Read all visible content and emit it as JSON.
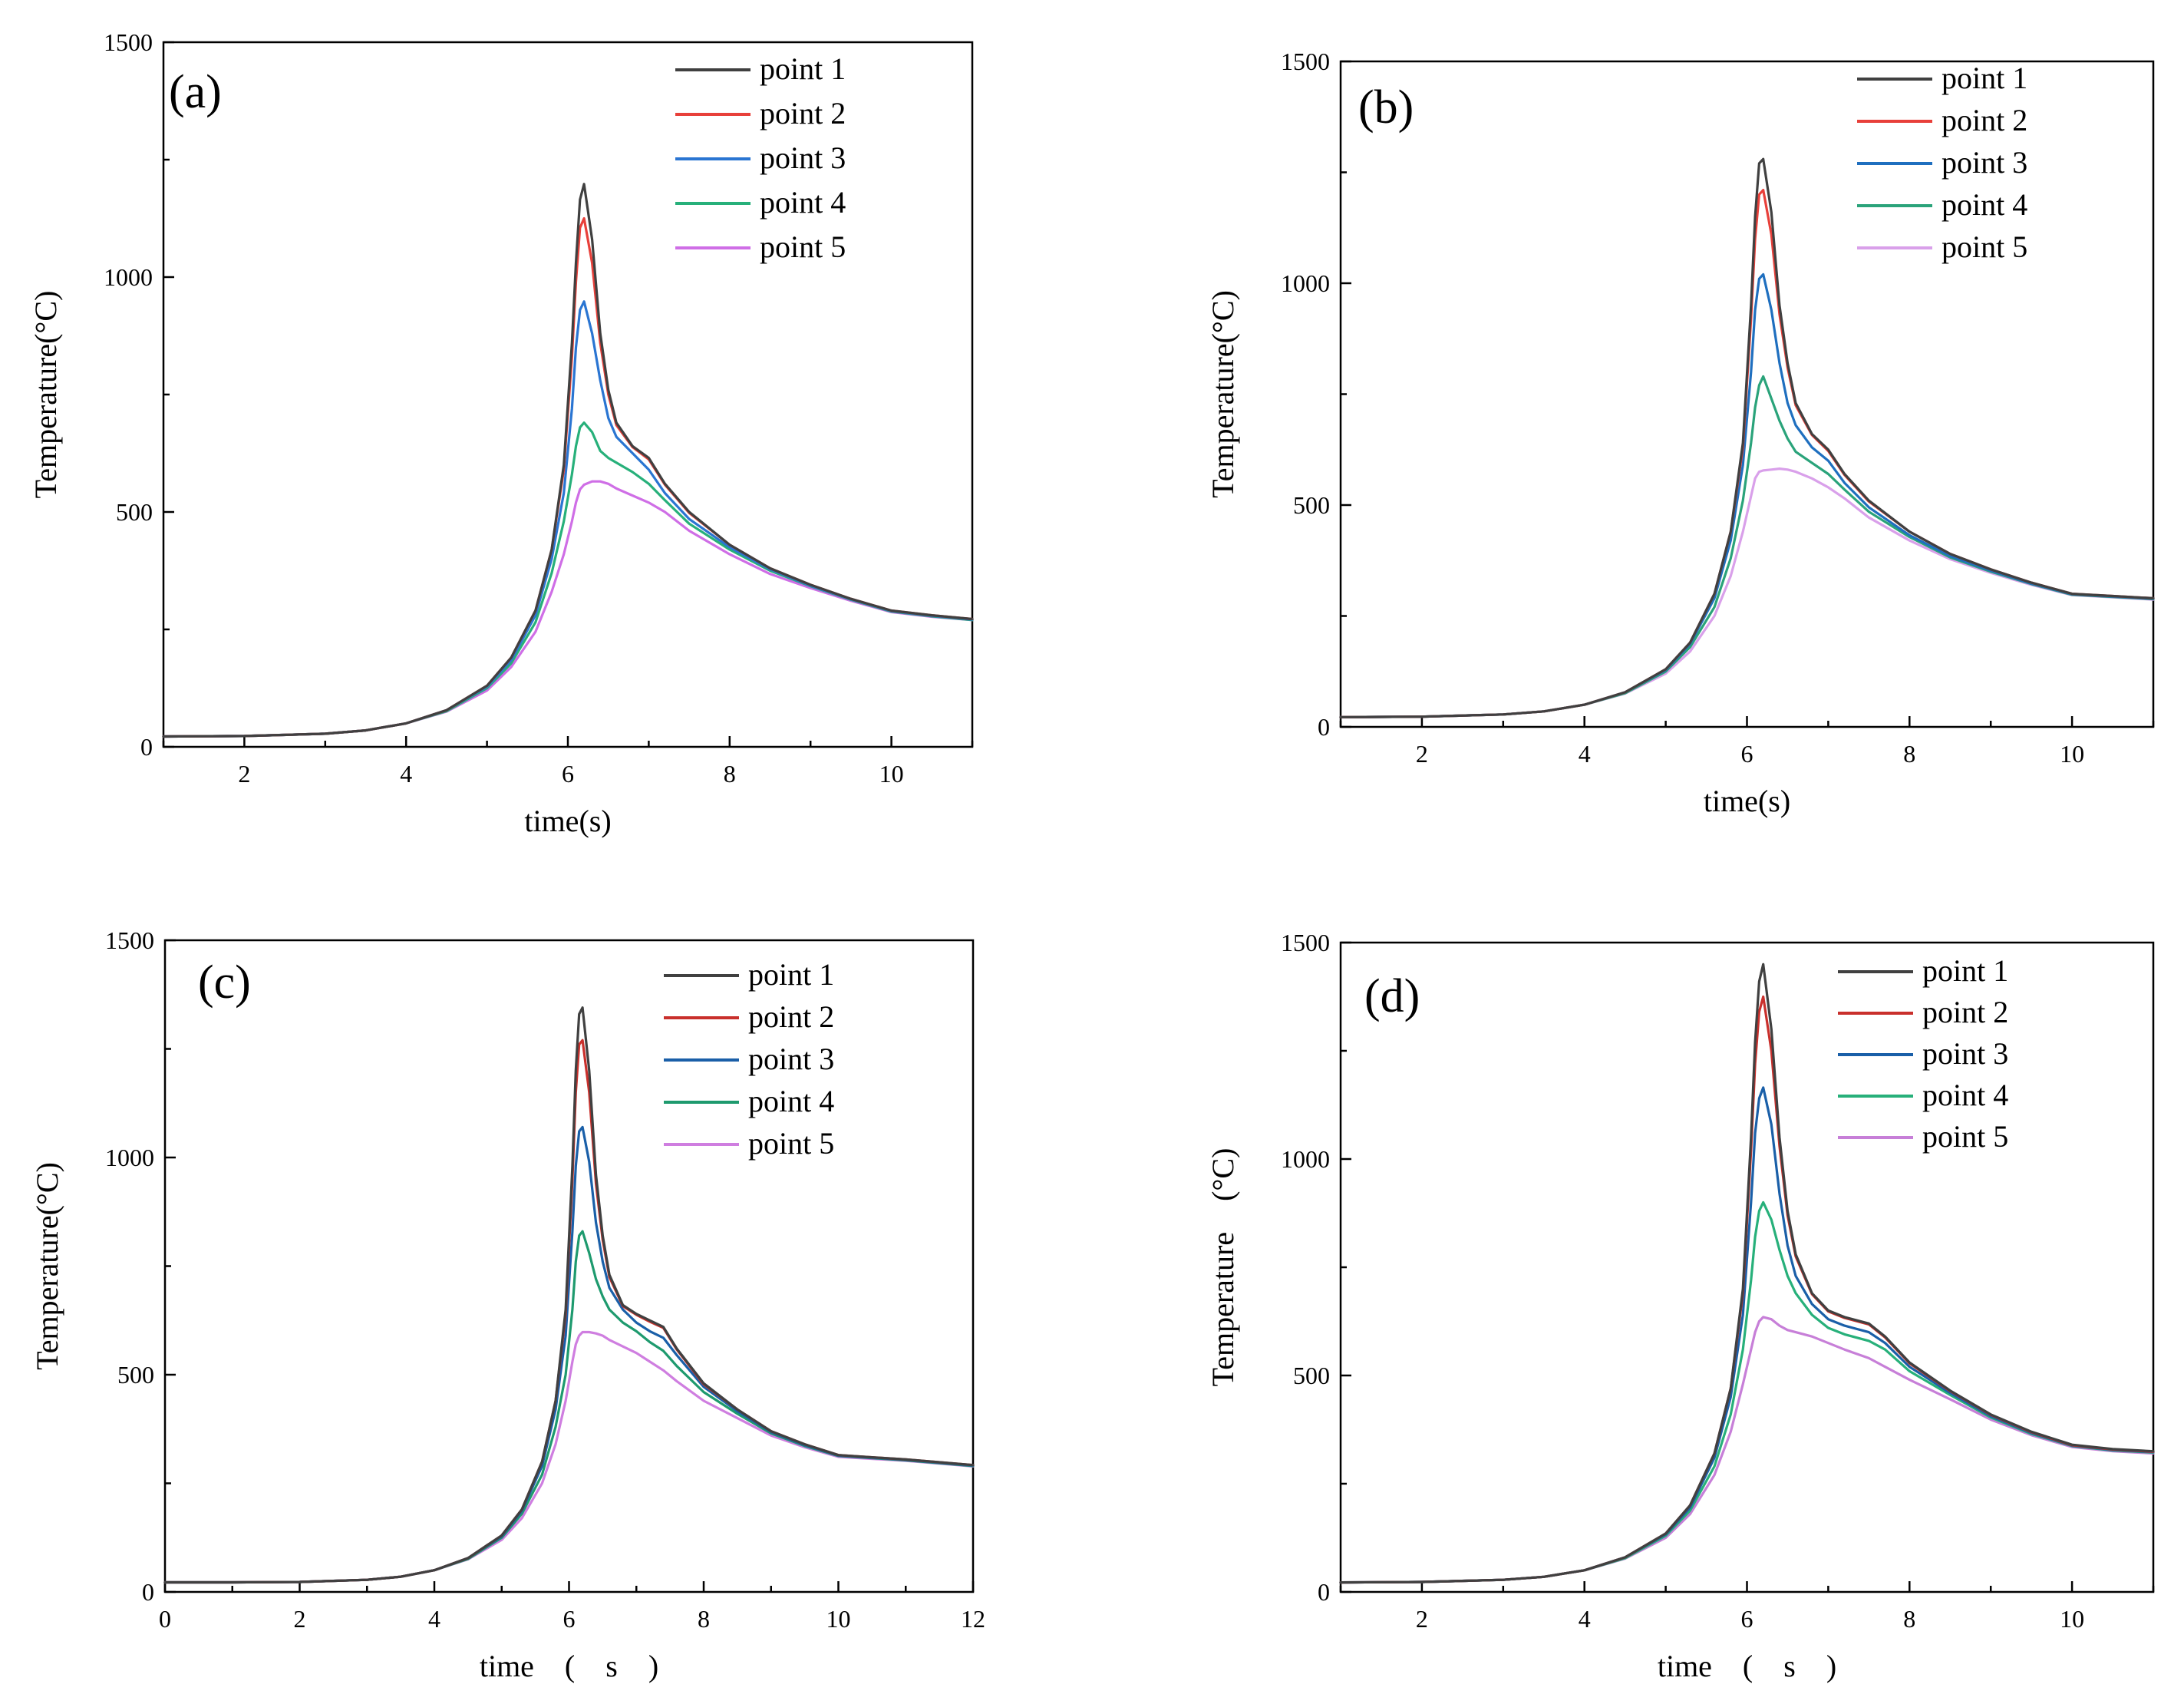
{
  "chart_data": [
    {
      "type": "line",
      "panel": "(a)",
      "xlabel": "time(s)",
      "ylabel": "Temperature(°C)",
      "xlim": [
        1,
        11
      ],
      "ylim": [
        0,
        1500
      ],
      "xticks": [
        2,
        4,
        6,
        8,
        10
      ],
      "yticks": [
        0,
        500,
        1000,
        1500
      ],
      "legend": "top-right",
      "x": [
        1,
        2,
        3,
        3.5,
        4,
        4.5,
        5,
        5.3,
        5.6,
        5.8,
        5.95,
        6.05,
        6.1,
        6.15,
        6.2,
        6.3,
        6.4,
        6.5,
        6.6,
        6.8,
        7.0,
        7.2,
        7.5,
        8,
        8.5,
        9,
        9.5,
        10,
        10.5,
        11
      ],
      "series": [
        {
          "name": "point 1",
          "color": "#404040",
          "values": [
            22,
            23,
            28,
            35,
            50,
            78,
            130,
            190,
            290,
            420,
            600,
            860,
            1030,
            1165,
            1198,
            1080,
            880,
            760,
            690,
            640,
            615,
            560,
            500,
            430,
            380,
            345,
            315,
            290,
            280,
            272
          ]
        },
        {
          "name": "point 2",
          "color": "#e8403a",
          "values": [
            22,
            23,
            28,
            35,
            50,
            78,
            130,
            190,
            290,
            420,
            590,
            830,
            990,
            1105,
            1125,
            1030,
            860,
            750,
            685,
            638,
            612,
            558,
            498,
            430,
            380,
            345,
            315,
            290,
            280,
            272
          ]
        },
        {
          "name": "point 3",
          "color": "#2a75d2",
          "values": [
            22,
            23,
            28,
            35,
            50,
            78,
            128,
            185,
            280,
            400,
            540,
            720,
            850,
            930,
            948,
            880,
            780,
            700,
            660,
            625,
            590,
            540,
            485,
            425,
            378,
            343,
            314,
            289,
            279,
            271
          ]
        },
        {
          "name": "point 4",
          "color": "#27b07a",
          "values": [
            22,
            23,
            28,
            35,
            50,
            76,
            125,
            178,
            265,
            370,
            480,
            580,
            640,
            680,
            690,
            670,
            630,
            615,
            605,
            585,
            560,
            525,
            475,
            420,
            375,
            342,
            313,
            288,
            278,
            270
          ]
        },
        {
          "name": "point 5",
          "color": "#cf6ee6",
          "values": [
            22,
            23,
            28,
            35,
            50,
            75,
            120,
            170,
            245,
            330,
            410,
            480,
            520,
            548,
            558,
            565,
            565,
            560,
            550,
            535,
            520,
            500,
            460,
            410,
            368,
            338,
            311,
            287,
            277,
            270
          ]
        }
      ]
    },
    {
      "type": "line",
      "panel": "(b)",
      "xlabel": "time(s)",
      "ylabel": "Temperature(°C)",
      "xlim": [
        1,
        11
      ],
      "ylim": [
        0,
        1500
      ],
      "xticks": [
        2,
        4,
        6,
        8,
        10
      ],
      "yticks": [
        0,
        500,
        1000,
        1500
      ],
      "legend": "top-right",
      "x": [
        1,
        2,
        3,
        3.5,
        4,
        4.5,
        5,
        5.3,
        5.6,
        5.8,
        5.95,
        6.05,
        6.1,
        6.15,
        6.2,
        6.3,
        6.4,
        6.5,
        6.6,
        6.8,
        7.0,
        7.2,
        7.5,
        8,
        8.5,
        9,
        9.5,
        10,
        10.5,
        11
      ],
      "series": [
        {
          "name": "point 1",
          "color": "#404040",
          "values": [
            22,
            23,
            28,
            35,
            50,
            78,
            130,
            190,
            300,
            440,
            640,
            950,
            1150,
            1270,
            1280,
            1160,
            950,
            820,
            730,
            660,
            625,
            570,
            510,
            440,
            390,
            355,
            325,
            300,
            295,
            290
          ]
        },
        {
          "name": "point 2",
          "color": "#e8403a",
          "values": [
            22,
            23,
            28,
            35,
            50,
            78,
            130,
            190,
            300,
            440,
            630,
            920,
            1100,
            1200,
            1210,
            1110,
            930,
            810,
            725,
            658,
            622,
            568,
            508,
            440,
            390,
            355,
            325,
            300,
            295,
            290
          ]
        },
        {
          "name": "point 3",
          "color": "#1f6fbf",
          "values": [
            22,
            23,
            28,
            35,
            50,
            78,
            128,
            187,
            290,
            420,
            590,
            800,
            940,
            1010,
            1020,
            940,
            820,
            730,
            680,
            630,
            600,
            550,
            495,
            432,
            385,
            352,
            323,
            299,
            294,
            289
          ]
        },
        {
          "name": "point 4",
          "color": "#2aa37a",
          "values": [
            22,
            23,
            28,
            35,
            50,
            76,
            125,
            180,
            270,
            380,
            510,
            640,
            720,
            770,
            790,
            740,
            690,
            650,
            620,
            595,
            570,
            535,
            485,
            428,
            382,
            350,
            322,
            298,
            293,
            288
          ]
        },
        {
          "name": "point 5",
          "color": "#d9a0ea",
          "values": [
            22,
            23,
            28,
            35,
            50,
            75,
            120,
            170,
            250,
            340,
            440,
            520,
            560,
            575,
            578,
            580,
            582,
            580,
            575,
            560,
            540,
            515,
            472,
            420,
            378,
            347,
            320,
            297,
            292,
            287
          ]
        }
      ]
    },
    {
      "type": "line",
      "panel": "(c)",
      "xlabel": "time　(　s　)",
      "ylabel": "Temperature(°C)",
      "xlim": [
        0,
        12
      ],
      "ylim": [
        0,
        1500
      ],
      "xticks": [
        0,
        2,
        4,
        6,
        8,
        10,
        12
      ],
      "yticks": [
        0,
        500,
        1000,
        1500
      ],
      "legend": "top-right",
      "x": [
        0,
        1,
        2,
        3,
        3.5,
        4,
        4.5,
        5,
        5.3,
        5.6,
        5.8,
        5.95,
        6.05,
        6.1,
        6.15,
        6.2,
        6.3,
        6.4,
        6.5,
        6.6,
        6.8,
        7.0,
        7.2,
        7.4,
        7.6,
        8,
        8.5,
        9,
        9.5,
        10,
        11,
        12
      ],
      "series": [
        {
          "name": "point 1",
          "color": "#404040",
          "values": [
            22,
            22,
            23,
            28,
            35,
            50,
            78,
            130,
            190,
            300,
            440,
            650,
            980,
            1200,
            1330,
            1345,
            1200,
            960,
            820,
            730,
            660,
            640,
            625,
            610,
            560,
            480,
            420,
            370,
            340,
            315,
            305,
            292
          ]
        },
        {
          "name": "point 2",
          "color": "#c9302c",
          "values": [
            22,
            22,
            23,
            28,
            35,
            50,
            78,
            130,
            190,
            300,
            440,
            640,
            950,
            1150,
            1260,
            1270,
            1150,
            940,
            810,
            725,
            658,
            638,
            622,
            608,
            558,
            478,
            420,
            370,
            340,
            315,
            305,
            292
          ]
        },
        {
          "name": "point 3",
          "color": "#1a5fa8",
          "values": [
            22,
            22,
            23,
            28,
            35,
            50,
            78,
            128,
            187,
            290,
            420,
            590,
            830,
            980,
            1060,
            1070,
            990,
            850,
            760,
            700,
            650,
            620,
            600,
            585,
            545,
            472,
            416,
            368,
            338,
            314,
            304,
            291
          ]
        },
        {
          "name": "point 4",
          "color": "#1e9a6e",
          "values": [
            22,
            22,
            23,
            28,
            35,
            50,
            76,
            125,
            180,
            270,
            380,
            500,
            650,
            760,
            820,
            830,
            780,
            720,
            680,
            650,
            620,
            600,
            575,
            555,
            520,
            460,
            410,
            365,
            336,
            313,
            303,
            290
          ]
        },
        {
          "name": "point 5",
          "color": "#cf7ee0",
          "values": [
            22,
            22,
            23,
            28,
            35,
            50,
            75,
            120,
            170,
            250,
            340,
            440,
            530,
            570,
            590,
            598,
            598,
            595,
            590,
            580,
            565,
            550,
            530,
            510,
            485,
            440,
            400,
            360,
            333,
            311,
            302,
            289
          ]
        }
      ]
    },
    {
      "type": "line",
      "panel": "(d)",
      "xlabel": "time　(　s　)",
      "ylabel": "Temperature　(°C)",
      "xlim": [
        1,
        11
      ],
      "ylim": [
        0,
        1500
      ],
      "xticks": [
        2,
        4,
        6,
        8,
        10
      ],
      "yticks": [
        0,
        500,
        1000,
        1500
      ],
      "legend": "top-right",
      "x": [
        1,
        2,
        3,
        3.5,
        4,
        4.5,
        5,
        5.3,
        5.6,
        5.8,
        5.95,
        6.05,
        6.1,
        6.15,
        6.2,
        6.3,
        6.4,
        6.5,
        6.6,
        6.8,
        7.0,
        7.2,
        7.5,
        7.7,
        8,
        8.5,
        9,
        9.5,
        10,
        10.5,
        11
      ],
      "series": [
        {
          "name": "point 1",
          "color": "#404040",
          "values": [
            22,
            23,
            28,
            35,
            50,
            80,
            135,
            200,
            320,
            470,
            700,
            1050,
            1270,
            1410,
            1450,
            1300,
            1050,
            880,
            780,
            690,
            650,
            635,
            620,
            590,
            530,
            465,
            410,
            370,
            340,
            330,
            325
          ]
        },
        {
          "name": "point 2",
          "color": "#c9302c",
          "values": [
            22,
            23,
            28,
            35,
            50,
            80,
            135,
            200,
            320,
            470,
            690,
            1020,
            1220,
            1340,
            1375,
            1250,
            1030,
            870,
            775,
            688,
            648,
            633,
            618,
            588,
            528,
            464,
            409,
            369,
            339,
            329,
            324
          ]
        },
        {
          "name": "point 3",
          "color": "#1a5fa8",
          "values": [
            22,
            23,
            28,
            35,
            50,
            80,
            133,
            195,
            310,
            450,
            640,
            900,
            1060,
            1140,
            1165,
            1080,
            920,
            800,
            730,
            665,
            630,
            615,
            600,
            575,
            520,
            460,
            406,
            367,
            338,
            328,
            323
          ]
        },
        {
          "name": "point 4",
          "color": "#27b07a",
          "values": [
            22,
            23,
            28,
            35,
            50,
            78,
            130,
            188,
            290,
            410,
            560,
            720,
            820,
            880,
            900,
            860,
            790,
            730,
            690,
            640,
            610,
            595,
            580,
            560,
            510,
            455,
            403,
            365,
            337,
            327,
            322
          ]
        },
        {
          "name": "point 5",
          "color": "#c77fd8",
          "values": [
            22,
            23,
            28,
            35,
            50,
            77,
            125,
            180,
            270,
            370,
            480,
            560,
            600,
            625,
            635,
            630,
            615,
            605,
            600,
            590,
            575,
            560,
            540,
            520,
            490,
            445,
            398,
            362,
            335,
            325,
            320
          ]
        }
      ]
    }
  ]
}
